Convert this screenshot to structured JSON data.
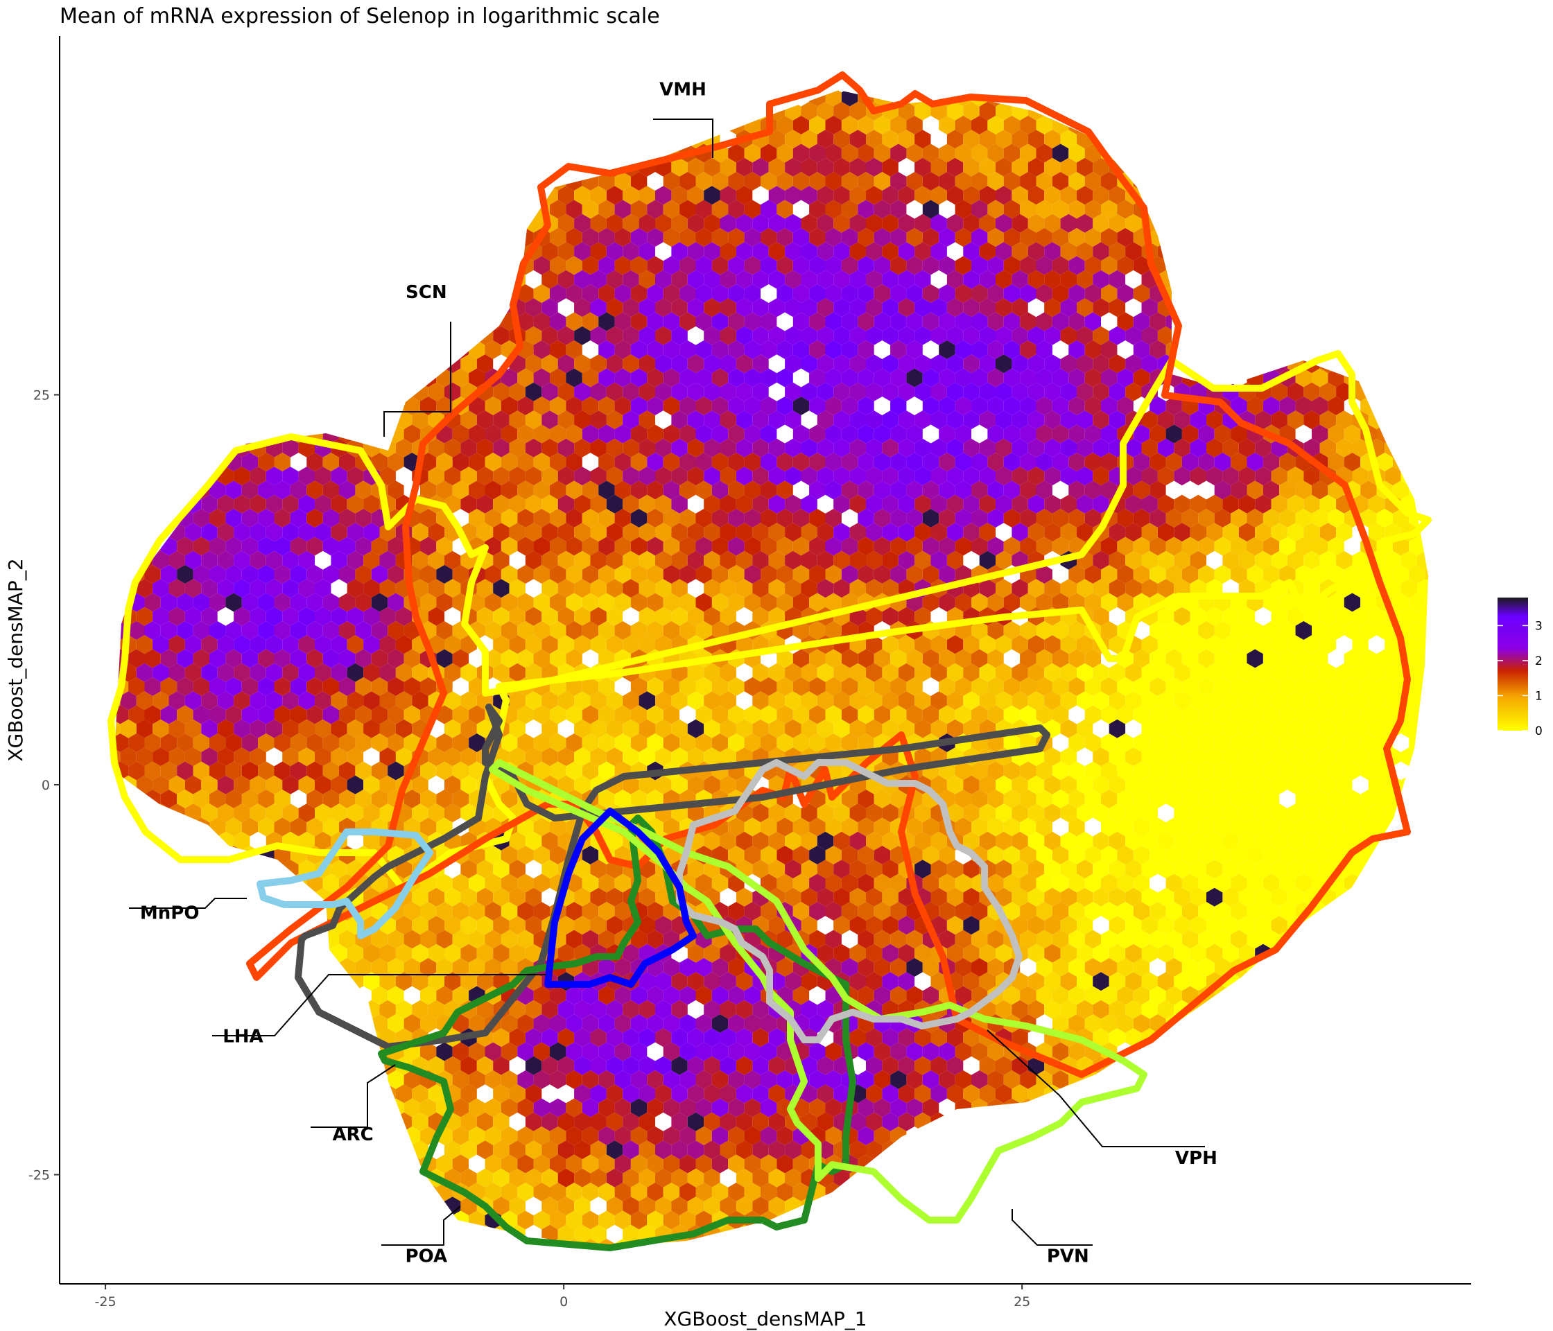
{
  "chart_data": {
    "type": "heatmap",
    "subtype": "hexbin",
    "title": "Mean of mRNA expression of Selenop in logarithmic scale",
    "xlabel": "XGBoost_densMAP_1",
    "ylabel": "XGBoost_densMAP_2",
    "xlim": [
      -27.5,
      49.5
    ],
    "ylim": [
      -32,
      48
    ],
    "x_ticks": [
      -25,
      0,
      25
    ],
    "y_ticks": [
      -25,
      0,
      25
    ],
    "grid": false,
    "legend": {
      "placement": "right",
      "ticks": [
        0,
        1,
        2,
        3
      ],
      "range": [
        0,
        3.8
      ],
      "colors": [
        "#ffff00",
        "#f5a300",
        "#c82200",
        "#8b00e6",
        "#6b00ff",
        "#1a1a1a"
      ]
    },
    "regions": [
      {
        "name": "VMH",
        "color": "#ff4500",
        "label_pos": [
          6.5,
          44.2
        ]
      },
      {
        "name": "SCN",
        "color": "#ffff00",
        "label_pos": [
          -7.5,
          31.2
        ]
      },
      {
        "name": "MnPO",
        "color": "#87ceeb",
        "label_pos": [
          -21.5,
          -8.6
        ]
      },
      {
        "name": "LHA",
        "color": "#4d4d4d",
        "label_pos": [
          -17.5,
          -16.5
        ]
      },
      {
        "name": "ARC",
        "color": "#0000ff",
        "label_pos": [
          -11.5,
          -22.8
        ]
      },
      {
        "name": "POA",
        "color": "#228b22",
        "label_pos": [
          -7.5,
          -30.6
        ]
      },
      {
        "name": "PVN",
        "color": "#adff2f",
        "label_pos": [
          27.5,
          -30.6
        ]
      },
      {
        "name": "VPH",
        "color": "#c0c0c0",
        "label_pos": [
          34.5,
          -24.3
        ]
      }
    ]
  }
}
